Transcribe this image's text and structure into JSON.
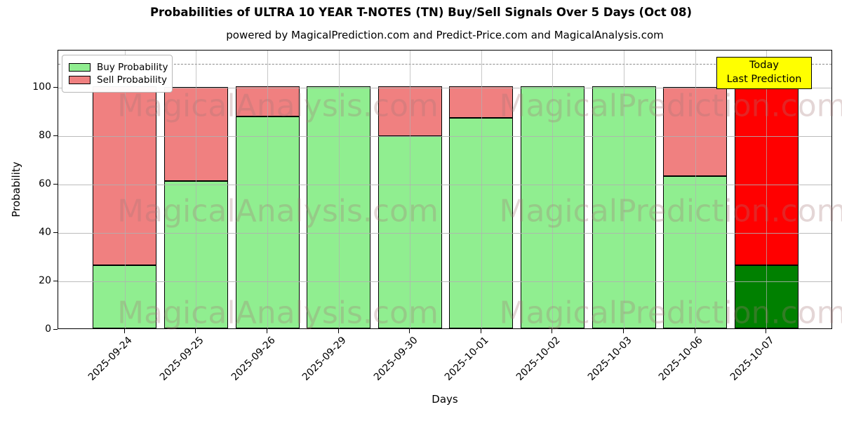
{
  "chart_data": {
    "type": "bar",
    "stacked": true,
    "title": "Probabilities of ULTRA 10 YEAR T-NOTES (TN) Buy/Sell Signals Over 5 Days (Oct 08)",
    "subtitle": "powered by MagicalPrediction.com and Predict-Price.com and MagicalAnalysis.com",
    "xlabel": "Days",
    "ylabel": "Probability",
    "categories": [
      "2025-09-24",
      "2025-09-25",
      "2025-09-26",
      "2025-09-29",
      "2025-09-30",
      "2025-10-01",
      "2025-10-02",
      "2025-10-03",
      "2025-10-06",
      "2025-10-07"
    ],
    "series": [
      {
        "name": "Buy Probability",
        "color": "#90EE90",
        "today_color": "#008000",
        "values": [
          26,
          61,
          87.5,
          100,
          79.5,
          87,
          100,
          100,
          63,
          26
        ]
      },
      {
        "name": "Sell Probability",
        "color": "#F08080",
        "today_color": "#FF0000",
        "values": [
          74,
          39,
          12.5,
          0,
          20.5,
          13,
          0,
          0,
          37,
          74
        ]
      }
    ],
    "today_index": 9,
    "ylim": [
      0,
      115.5
    ],
    "yticks": [
      0,
      20,
      40,
      60,
      80,
      100
    ],
    "dashed_line_y": 110,
    "grid": true,
    "legend_position": "upper left",
    "legend": [
      {
        "label": "Buy Probability",
        "color": "#90EE90"
      },
      {
        "label": "Sell Probability",
        "color": "#F08080"
      }
    ],
    "annotation": {
      "line1": "Today",
      "line2": "Last Prediction",
      "bg_color": "#FFFF00"
    },
    "watermarks": {
      "texts": [
        "MagicalAnalysis.com",
        "MagicalPrediction.com"
      ],
      "color": "rgba(165,120,120,0.30)"
    },
    "colors": {
      "bar_edge": "#000000",
      "grid": "#b0b0b0",
      "dashed_line": "#8a8a8a",
      "axes_edge": "#000000"
    }
  }
}
